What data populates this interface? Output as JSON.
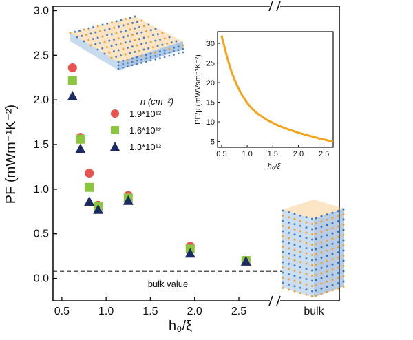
{
  "chart_data": {
    "type": "scatter",
    "xlabel": "h₀/ξ",
    "ylabel": "PF (mWm⁻¹K⁻²)",
    "xlim": [
      0.4,
      2.85
    ],
    "ylim": [
      -0.25,
      3.05
    ],
    "x_ticks": [
      "0.5",
      "1.0",
      "1.5",
      "2.0",
      "2.5"
    ],
    "y_ticks": [
      "0.0",
      "0.5",
      "1.0",
      "1.5",
      "2.0",
      "2.5",
      "3.0"
    ],
    "x_break_label": "bulk",
    "reference_line": {
      "y": 0.08,
      "label": "bulk value",
      "style": "dashed"
    },
    "legend": {
      "title": "n (cm⁻²)",
      "items": [
        {
          "label": "1.9*10¹²",
          "color": "#e8534f",
          "marker": "circle"
        },
        {
          "label": "1.6*10¹²",
          "color": "#8cc63f",
          "marker": "square"
        },
        {
          "label": "1.3*10¹²",
          "color": "#1c2a63",
          "marker": "triangle"
        }
      ]
    },
    "series": [
      {
        "name": "1.9*10¹²",
        "color": "#e8534f",
        "marker": "circle",
        "x": [
          0.62,
          0.71,
          0.81,
          0.91,
          1.25,
          1.95,
          2.58
        ],
        "y": [
          2.36,
          1.58,
          1.18,
          0.82,
          0.93,
          0.36,
          0.2
        ]
      },
      {
        "name": "1.6*10¹²",
        "color": "#8cc63f",
        "marker": "square",
        "x": [
          0.62,
          0.71,
          0.81,
          0.91,
          1.25,
          1.95,
          2.58
        ],
        "y": [
          2.22,
          1.56,
          1.02,
          0.81,
          0.9,
          0.33,
          0.2
        ]
      },
      {
        "name": "1.3*10¹²",
        "color": "#1c2a63",
        "marker": "triangle",
        "x": [
          0.62,
          0.71,
          0.81,
          0.91,
          1.25,
          1.95,
          2.58
        ],
        "y": [
          2.04,
          1.45,
          0.86,
          0.77,
          0.87,
          0.28,
          0.19
        ]
      }
    ],
    "inset": {
      "type": "line",
      "xlabel": "h₀/ξ",
      "ylabel": "PF/μ (mWVsm⁻³K⁻²)",
      "xlim": [
        0.42,
        2.68
      ],
      "ylim": [
        3.5,
        33
      ],
      "x_ticks": [
        "0.5",
        "1.0",
        "1.5",
        "2.0",
        "2.5"
      ],
      "y_ticks": [
        "5",
        "10",
        "15",
        "20",
        "25",
        "30"
      ],
      "color": "#f5a31a",
      "x": [
        0.5,
        0.6,
        0.7,
        0.8,
        0.9,
        1.0,
        1.1,
        1.2,
        1.4,
        1.6,
        1.8,
        2.0,
        2.2,
        2.4,
        2.68
      ],
      "y": [
        32.0,
        26.8,
        22.5,
        19.3,
        16.8,
        14.8,
        13.3,
        12.1,
        10.4,
        9.1,
        8.1,
        7.2,
        6.5,
        5.8,
        4.9
      ]
    }
  }
}
